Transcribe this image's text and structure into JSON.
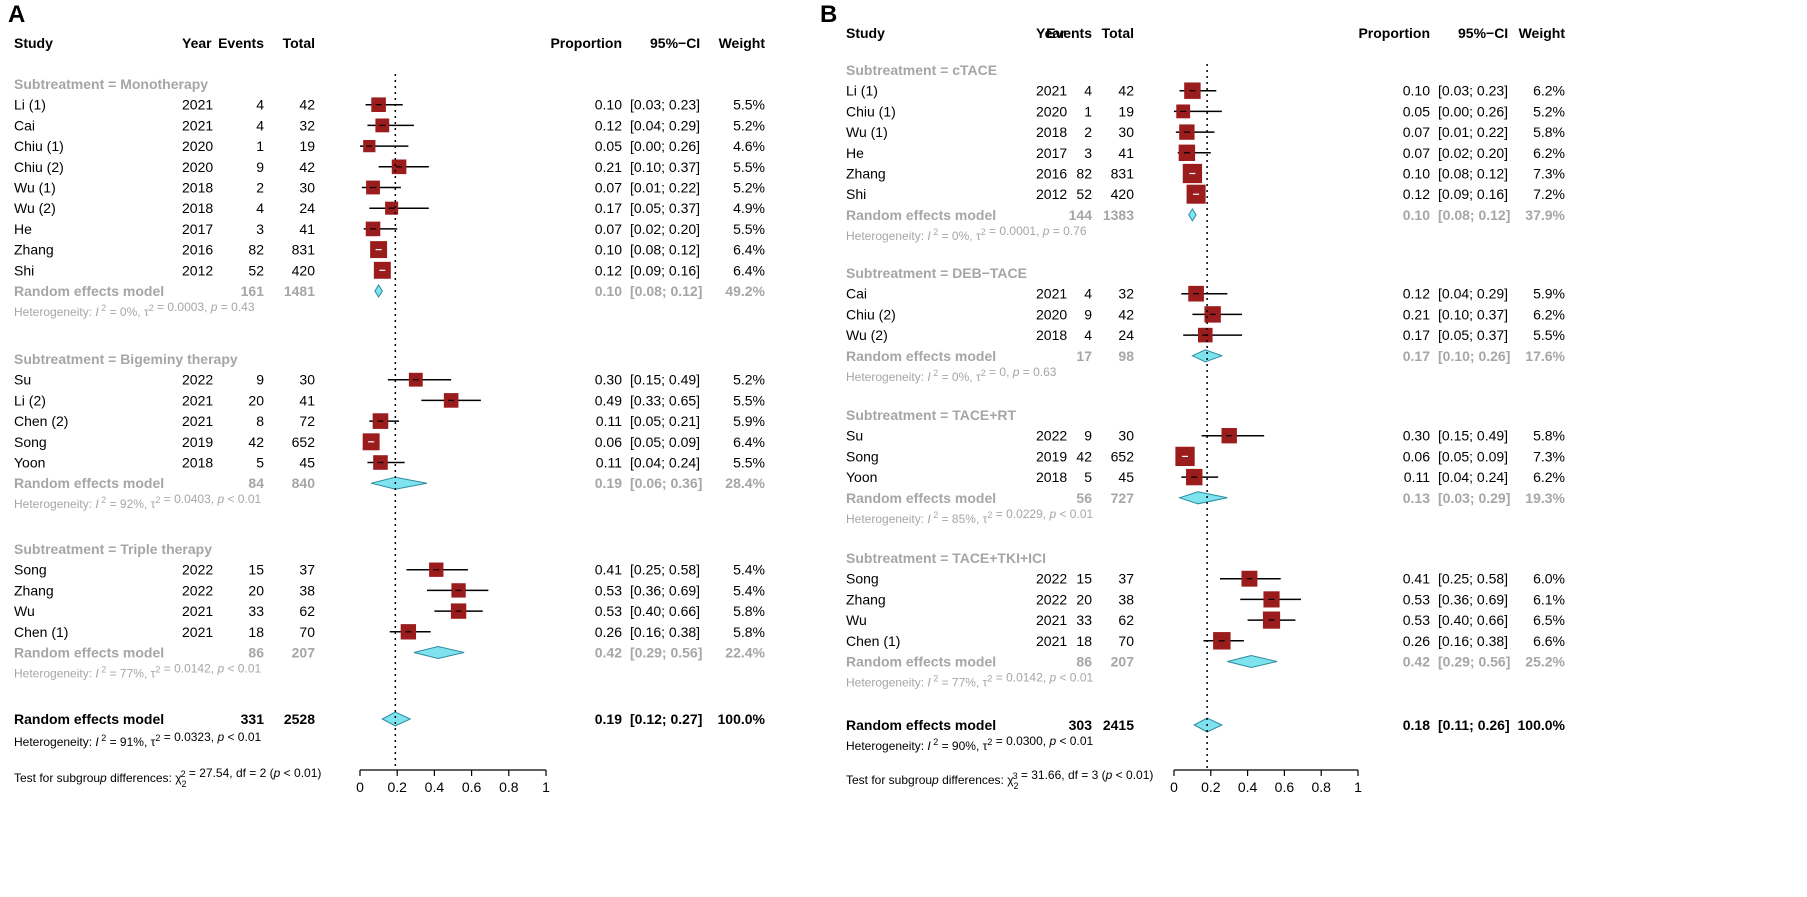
{
  "chart_data": [
    {
      "type": "forest",
      "panel_label": "A",
      "headers": {
        "study": "Study",
        "year": "Year",
        "events": "Events",
        "total": "Total",
        "proportion": "Proportion",
        "ci": "95%−CI",
        "weight": "Weight"
      },
      "xaxis": {
        "ticks": [
          "0",
          "0.2",
          "0.4",
          "0.6",
          "0.8",
          "1"
        ],
        "range": [
          0,
          1
        ],
        "reference_line": 0.19
      },
      "groups": [
        {
          "title": "Subtreatment = Monotherapy",
          "studies": [
            {
              "name": "Li (1)",
              "year": "2021",
              "events": "4",
              "total": "42",
              "prop": 0.1,
              "lo": 0.03,
              "hi": 0.23,
              "prop_text": "0.10",
              "ci_text": "[0.03; 0.23]",
              "weight": "5.5%"
            },
            {
              "name": "Cai",
              "year": "2021",
              "events": "4",
              "total": "32",
              "prop": 0.12,
              "lo": 0.04,
              "hi": 0.29,
              "prop_text": "0.12",
              "ci_text": "[0.04; 0.29]",
              "weight": "5.2%"
            },
            {
              "name": "Chiu (1)",
              "year": "2020",
              "events": "1",
              "total": "19",
              "prop": 0.05,
              "lo": 0.0,
              "hi": 0.26,
              "prop_text": "0.05",
              "ci_text": "[0.00; 0.26]",
              "weight": "4.6%"
            },
            {
              "name": "Chiu (2)",
              "year": "2020",
              "events": "9",
              "total": "42",
              "prop": 0.21,
              "lo": 0.1,
              "hi": 0.37,
              "prop_text": "0.21",
              "ci_text": "[0.10; 0.37]",
              "weight": "5.5%"
            },
            {
              "name": "Wu (1)",
              "year": "2018",
              "events": "2",
              "total": "30",
              "prop": 0.07,
              "lo": 0.01,
              "hi": 0.22,
              "prop_text": "0.07",
              "ci_text": "[0.01; 0.22]",
              "weight": "5.2%"
            },
            {
              "name": "Wu (2)",
              "year": "2018",
              "events": "4",
              "total": "24",
              "prop": 0.17,
              "lo": 0.05,
              "hi": 0.37,
              "prop_text": "0.17",
              "ci_text": "[0.05; 0.37]",
              "weight": "4.9%"
            },
            {
              "name": "He",
              "year": "2017",
              "events": "3",
              "total": "41",
              "prop": 0.07,
              "lo": 0.02,
              "hi": 0.2,
              "prop_text": "0.07",
              "ci_text": "[0.02; 0.20]",
              "weight": "5.5%"
            },
            {
              "name": "Zhang",
              "year": "2016",
              "events": "82",
              "total": "831",
              "prop": 0.1,
              "lo": 0.08,
              "hi": 0.12,
              "prop_text": "0.10",
              "ci_text": "[0.08; 0.12]",
              "weight": "6.4%"
            },
            {
              "name": "Shi",
              "year": "2012",
              "events": "52",
              "total": "420",
              "prop": 0.12,
              "lo": 0.09,
              "hi": 0.16,
              "prop_text": "0.12",
              "ci_text": "[0.09; 0.16]",
              "weight": "6.4%"
            }
          ],
          "model": {
            "label": "Random effects model",
            "events": "161",
            "total": "1481",
            "prop": 0.1,
            "lo": 0.08,
            "hi": 0.12,
            "prop_text": "0.10",
            "ci_text": "[0.08; 0.12]",
            "weight": "49.2%"
          },
          "heterogeneity": "Heterogeneity: I² = 0%, τ² = 0.0003, p = 0.43"
        },
        {
          "title": "Subtreatment = Bigeminy therapy",
          "studies": [
            {
              "name": "Su",
              "year": "2022",
              "events": "9",
              "total": "30",
              "prop": 0.3,
              "lo": 0.15,
              "hi": 0.49,
              "prop_text": "0.30",
              "ci_text": "[0.15; 0.49]",
              "weight": "5.2%"
            },
            {
              "name": "Li (2)",
              "year": "2021",
              "events": "20",
              "total": "41",
              "prop": 0.49,
              "lo": 0.33,
              "hi": 0.65,
              "prop_text": "0.49",
              "ci_text": "[0.33; 0.65]",
              "weight": "5.5%"
            },
            {
              "name": "Chen (2)",
              "year": "2021",
              "events": "8",
              "total": "72",
              "prop": 0.11,
              "lo": 0.05,
              "hi": 0.21,
              "prop_text": "0.11",
              "ci_text": "[0.05; 0.21]",
              "weight": "5.9%"
            },
            {
              "name": "Song",
              "year": "2019",
              "events": "42",
              "total": "652",
              "prop": 0.06,
              "lo": 0.05,
              "hi": 0.09,
              "prop_text": "0.06",
              "ci_text": "[0.05; 0.09]",
              "weight": "6.4%"
            },
            {
              "name": "Yoon",
              "year": "2018",
              "events": "5",
              "total": "45",
              "prop": 0.11,
              "lo": 0.04,
              "hi": 0.24,
              "prop_text": "0.11",
              "ci_text": "[0.04; 0.24]",
              "weight": "5.5%"
            }
          ],
          "model": {
            "label": "Random effects model",
            "events": "84",
            "total": "840",
            "prop": 0.19,
            "lo": 0.06,
            "hi": 0.36,
            "prop_text": "0.19",
            "ci_text": "[0.06; 0.36]",
            "weight": "28.4%"
          },
          "heterogeneity": "Heterogeneity: I² = 92%, τ² = 0.0403, p < 0.01"
        },
        {
          "title": "Subtreatment = Triple therapy",
          "studies": [
            {
              "name": "Song",
              "year": "2022",
              "events": "15",
              "total": "37",
              "prop": 0.41,
              "lo": 0.25,
              "hi": 0.58,
              "prop_text": "0.41",
              "ci_text": "[0.25; 0.58]",
              "weight": "5.4%"
            },
            {
              "name": "Zhang",
              "year": "2022",
              "events": "20",
              "total": "38",
              "prop": 0.53,
              "lo": 0.36,
              "hi": 0.69,
              "prop_text": "0.53",
              "ci_text": "[0.36; 0.69]",
              "weight": "5.4%"
            },
            {
              "name": "Wu",
              "year": "2021",
              "events": "33",
              "total": "62",
              "prop": 0.53,
              "lo": 0.4,
              "hi": 0.66,
              "prop_text": "0.53",
              "ci_text": "[0.40; 0.66]",
              "weight": "5.8%"
            },
            {
              "name": "Chen (1)",
              "year": "2021",
              "events": "18",
              "total": "70",
              "prop": 0.26,
              "lo": 0.16,
              "hi": 0.38,
              "prop_text": "0.26",
              "ci_text": "[0.16; 0.38]",
              "weight": "5.8%"
            }
          ],
          "model": {
            "label": "Random effects model",
            "events": "86",
            "total": "207",
            "prop": 0.42,
            "lo": 0.29,
            "hi": 0.56,
            "prop_text": "0.42",
            "ci_text": "[0.29; 0.56]",
            "weight": "22.4%"
          },
          "heterogeneity": "Heterogeneity: I² = 77%, τ² = 0.0142, p < 0.01"
        }
      ],
      "overall": {
        "label": "Random effects model",
        "events": "331",
        "total": "2528",
        "prop": 0.19,
        "lo": 0.12,
        "hi": 0.27,
        "prop_text": "0.19",
        "ci_text": "[0.12; 0.27]",
        "weight": "100.0%"
      },
      "overall_heterogeneity": "Heterogeneity: I² = 91%, τ² = 0.0323, p < 0.01",
      "subgroup_test": "Test for subgroup differences: χ²₂ = 27.54, df = 2 (p < 0.01)"
    },
    {
      "type": "forest",
      "panel_label": "B",
      "headers": {
        "study": "Study",
        "year": "Year",
        "events": "Events",
        "total": "Total",
        "proportion": "Proportion",
        "ci": "95%−CI",
        "weight": "Weight"
      },
      "xaxis": {
        "ticks": [
          "0",
          "0.2",
          "0.4",
          "0.6",
          "0.8",
          "1"
        ],
        "range": [
          0,
          1
        ],
        "reference_line": 0.18
      },
      "groups": [
        {
          "title": "Subtreatment = cTACE",
          "studies": [
            {
              "name": "Li (1)",
              "year": "2021",
              "events": "4",
              "total": "42",
              "prop": 0.1,
              "lo": 0.03,
              "hi": 0.23,
              "prop_text": "0.10",
              "ci_text": "[0.03; 0.23]",
              "weight": "6.2%"
            },
            {
              "name": "Chiu (1)",
              "year": "2020",
              "events": "1",
              "total": "19",
              "prop": 0.05,
              "lo": 0.0,
              "hi": 0.26,
              "prop_text": "0.05",
              "ci_text": "[0.00; 0.26]",
              "weight": "5.2%"
            },
            {
              "name": "Wu (1)",
              "year": "2018",
              "events": "2",
              "total": "30",
              "prop": 0.07,
              "lo": 0.01,
              "hi": 0.22,
              "prop_text": "0.07",
              "ci_text": "[0.01; 0.22]",
              "weight": "5.8%"
            },
            {
              "name": "He",
              "year": "2017",
              "events": "3",
              "total": "41",
              "prop": 0.07,
              "lo": 0.02,
              "hi": 0.2,
              "prop_text": "0.07",
              "ci_text": "[0.02; 0.20]",
              "weight": "6.2%"
            },
            {
              "name": "Zhang",
              "year": "2016",
              "events": "82",
              "total": "831",
              "prop": 0.1,
              "lo": 0.08,
              "hi": 0.12,
              "prop_text": "0.10",
              "ci_text": "[0.08; 0.12]",
              "weight": "7.3%"
            },
            {
              "name": "Shi",
              "year": "2012",
              "events": "52",
              "total": "420",
              "prop": 0.12,
              "lo": 0.09,
              "hi": 0.16,
              "prop_text": "0.12",
              "ci_text": "[0.09; 0.16]",
              "weight": "7.2%"
            }
          ],
          "model": {
            "label": "Random effects model",
            "events": "144",
            "total": "1383",
            "prop": 0.1,
            "lo": 0.08,
            "hi": 0.12,
            "prop_text": "0.10",
            "ci_text": "[0.08; 0.12]",
            "weight": "37.9%"
          },
          "heterogeneity": "Heterogeneity: I² = 0%, τ² = 0.0001, p = 0.76"
        },
        {
          "title": "Subtreatment = DEB−TACE",
          "studies": [
            {
              "name": "Cai",
              "year": "2021",
              "events": "4",
              "total": "32",
              "prop": 0.12,
              "lo": 0.04,
              "hi": 0.29,
              "prop_text": "0.12",
              "ci_text": "[0.04; 0.29]",
              "weight": "5.9%"
            },
            {
              "name": "Chiu (2)",
              "year": "2020",
              "events": "9",
              "total": "42",
              "prop": 0.21,
              "lo": 0.1,
              "hi": 0.37,
              "prop_text": "0.21",
              "ci_text": "[0.10; 0.37]",
              "weight": "6.2%"
            },
            {
              "name": "Wu (2)",
              "year": "2018",
              "events": "4",
              "total": "24",
              "prop": 0.17,
              "lo": 0.05,
              "hi": 0.37,
              "prop_text": "0.17",
              "ci_text": "[0.05; 0.37]",
              "weight": "5.5%"
            }
          ],
          "model": {
            "label": "Random effects model",
            "events": "17",
            "total": "98",
            "prop": 0.17,
            "lo": 0.1,
            "hi": 0.26,
            "prop_text": "0.17",
            "ci_text": "[0.10; 0.26]",
            "weight": "17.6%"
          },
          "heterogeneity": "Heterogeneity: I² = 0%, τ² = 0, p = 0.63"
        },
        {
          "title": "Subtreatment = TACE+RT",
          "studies": [
            {
              "name": "Su",
              "year": "2022",
              "events": "9",
              "total": "30",
              "prop": 0.3,
              "lo": 0.15,
              "hi": 0.49,
              "prop_text": "0.30",
              "ci_text": "[0.15; 0.49]",
              "weight": "5.8%"
            },
            {
              "name": "Song",
              "year": "2019",
              "events": "42",
              "total": "652",
              "prop": 0.06,
              "lo": 0.05,
              "hi": 0.09,
              "prop_text": "0.06",
              "ci_text": "[0.05; 0.09]",
              "weight": "7.3%"
            },
            {
              "name": "Yoon",
              "year": "2018",
              "events": "5",
              "total": "45",
              "prop": 0.11,
              "lo": 0.04,
              "hi": 0.24,
              "prop_text": "0.11",
              "ci_text": "[0.04; 0.24]",
              "weight": "6.2%"
            }
          ],
          "model": {
            "label": "Random effects model",
            "events": "56",
            "total": "727",
            "prop": 0.13,
            "lo": 0.03,
            "hi": 0.29,
            "prop_text": "0.13",
            "ci_text": "[0.03; 0.29]",
            "weight": "19.3%"
          },
          "heterogeneity": "Heterogeneity: I² = 85%, τ² = 0.0229, p < 0.01"
        },
        {
          "title": "Subtreatment = TACE+TKI+ICI",
          "studies": [
            {
              "name": "Song",
              "year": "2022",
              "events": "15",
              "total": "37",
              "prop": 0.41,
              "lo": 0.25,
              "hi": 0.58,
              "prop_text": "0.41",
              "ci_text": "[0.25; 0.58]",
              "weight": "6.0%"
            },
            {
              "name": "Zhang",
              "year": "2022",
              "events": "20",
              "total": "38",
              "prop": 0.53,
              "lo": 0.36,
              "hi": 0.69,
              "prop_text": "0.53",
              "ci_text": "[0.36; 0.69]",
              "weight": "6.1%"
            },
            {
              "name": "Wu",
              "year": "2021",
              "events": "33",
              "total": "62",
              "prop": 0.53,
              "lo": 0.4,
              "hi": 0.66,
              "prop_text": "0.53",
              "ci_text": "[0.40; 0.66]",
              "weight": "6.5%"
            },
            {
              "name": "Chen (1)",
              "year": "2021",
              "events": "18",
              "total": "70",
              "prop": 0.26,
              "lo": 0.16,
              "hi": 0.38,
              "prop_text": "0.26",
              "ci_text": "[0.16; 0.38]",
              "weight": "6.6%"
            }
          ],
          "model": {
            "label": "Random effects model",
            "events": "86",
            "total": "207",
            "prop": 0.42,
            "lo": 0.29,
            "hi": 0.56,
            "prop_text": "0.42",
            "ci_text": "[0.29; 0.56]",
            "weight": "25.2%"
          },
          "heterogeneity": "Heterogeneity: I² = 77%, τ² = 0.0142, p < 0.01"
        }
      ],
      "overall": {
        "label": "Random effects model",
        "events": "303",
        "total": "2415",
        "prop": 0.18,
        "lo": 0.11,
        "hi": 0.26,
        "prop_text": "0.18",
        "ci_text": "[0.11; 0.26]",
        "weight": "100.0%"
      },
      "overall_heterogeneity": "Heterogeneity: I² = 90%, τ² = 0.0300, p < 0.01",
      "subgroup_test": "Test for subgroup differences: χ²₃ = 31.66, df = 3 (p < 0.01)"
    }
  ],
  "colors": {
    "box": "#9b1c1c",
    "diamond": "#7fe3ef",
    "diamond_stroke": "#2b8ba0",
    "grey_text": "#a6a6a6"
  }
}
